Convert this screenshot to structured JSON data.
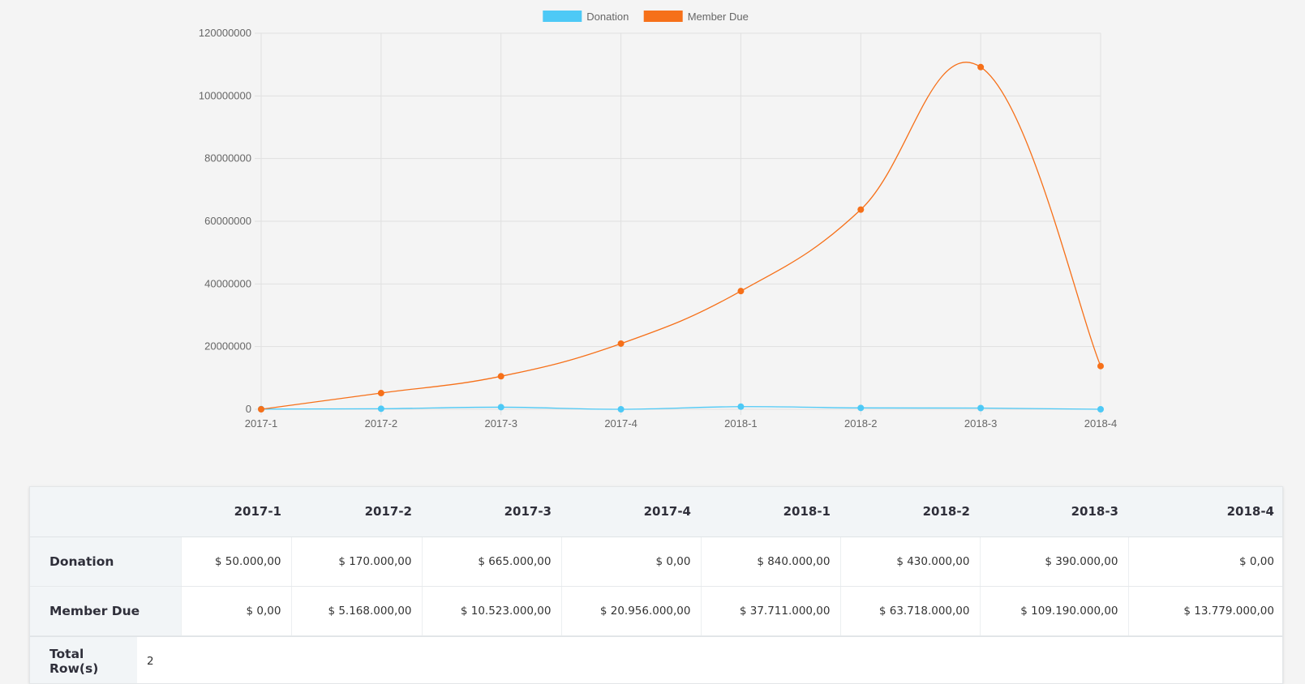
{
  "chart_data": {
    "type": "line",
    "categories": [
      "2017-1",
      "2017-2",
      "2017-3",
      "2017-4",
      "2018-1",
      "2018-2",
      "2018-3",
      "2018-4"
    ],
    "series": [
      {
        "name": "Donation",
        "color": "#4dc9f6",
        "values": [
          50000,
          170000,
          665000,
          0,
          840000,
          430000,
          390000,
          0
        ]
      },
      {
        "name": "Member Due",
        "color": "#f67019",
        "values": [
          0,
          5168000,
          10523000,
          20956000,
          37711000,
          63718000,
          109190000,
          13779000
        ]
      }
    ],
    "yticks": [
      "0",
      "20000000",
      "40000000",
      "60000000",
      "80000000",
      "100000000",
      "120000000"
    ],
    "ylim": [
      0,
      120000000
    ],
    "grid": true,
    "legend_position": "top",
    "smooth": true
  },
  "table": {
    "columns": [
      "2017-1",
      "2017-2",
      "2017-3",
      "2017-4",
      "2018-1",
      "2018-2",
      "2018-3",
      "2018-4"
    ],
    "rows": [
      {
        "label": "Donation",
        "cells": [
          "$ 50.000,00",
          "$ 170.000,00",
          "$ 665.000,00",
          "$ 0,00",
          "$ 840.000,00",
          "$ 430.000,00",
          "$ 390.000,00",
          "$ 0,00"
        ]
      },
      {
        "label": "Member Due",
        "cells": [
          "$ 0,00",
          "$ 5.168.000,00",
          "$ 10.523.000,00",
          "$ 20.956.000,00",
          "$ 37.711.000,00",
          "$ 63.718.000,00",
          "$ 109.190.000,00",
          "$ 13.779.000,00"
        ]
      }
    ],
    "total_label": "Total Row(s)",
    "total_value": "2"
  }
}
